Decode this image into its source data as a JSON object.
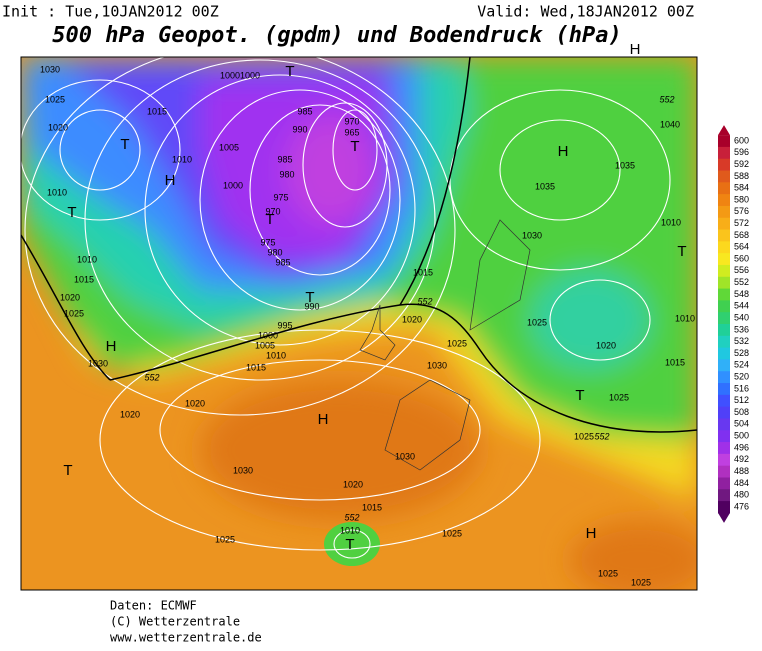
{
  "header": {
    "init": "Init : Tue,10JAN2012 00Z",
    "valid": "Valid: Wed,18JAN2012 00Z",
    "title": "500 hPa Geopot. (gpdm) und Bodendruck (hPa)"
  },
  "legend": {
    "levels": [
      600,
      596,
      592,
      588,
      584,
      580,
      576,
      572,
      568,
      564,
      560,
      556,
      552,
      548,
      544,
      540,
      536,
      532,
      528,
      524,
      520,
      516,
      512,
      508,
      504,
      500,
      496,
      492,
      488,
      484,
      480,
      476
    ],
    "colors": [
      "#a8002a",
      "#c8203a",
      "#d83a28",
      "#e05a1c",
      "#e87014",
      "#f08412",
      "#f49a14",
      "#f8ae18",
      "#fac41c",
      "#fcd81e",
      "#f8e820",
      "#d0ec20",
      "#a0e428",
      "#60d838",
      "#40d050",
      "#30d070",
      "#20d098",
      "#20d0c0",
      "#20c8e0",
      "#30b0f8",
      "#3090ff",
      "#3070ff",
      "#4050ff",
      "#5040f8",
      "#6838f0",
      "#8030f0",
      "#a030e8",
      "#c040e0",
      "#b030c0",
      "#9020a0",
      "#701880",
      "#500060"
    ]
  },
  "map": {
    "labels": [
      "1030",
      "1025",
      "1020",
      "1015",
      "1010",
      "1005",
      "1000",
      "1000",
      "1000",
      "985",
      "990",
      "970",
      "965",
      "985",
      "980",
      "975",
      "970",
      "975",
      "980",
      "985",
      "990",
      "995",
      "1000",
      "1005",
      "1010",
      "1015",
      "1010",
      "1010",
      "1015",
      "1020",
      "1025",
      "1030",
      "1020",
      "1020",
      "1015",
      "1020",
      "1025",
      "1030",
      "1030",
      "1030",
      "1020",
      "1015",
      "1010",
      "1025",
      "1025",
      "1025",
      "1025",
      "1025",
      "1025",
      "1020",
      "1025",
      "1015",
      "1010",
      "1030",
      "1035",
      "1035",
      "1040",
      "1010",
      "552",
      "552",
      "552",
      "552",
      "552",
      "H",
      "H",
      "H",
      "H",
      "H",
      "H",
      "T",
      "T",
      "T",
      "T",
      "T",
      "T",
      "T",
      "T",
      "T",
      "T"
    ]
  },
  "footer": {
    "source": "Daten: ECMWF",
    "copyright": "(C) Wetterzentrale",
    "url": "www.wetterzentrale.de"
  }
}
